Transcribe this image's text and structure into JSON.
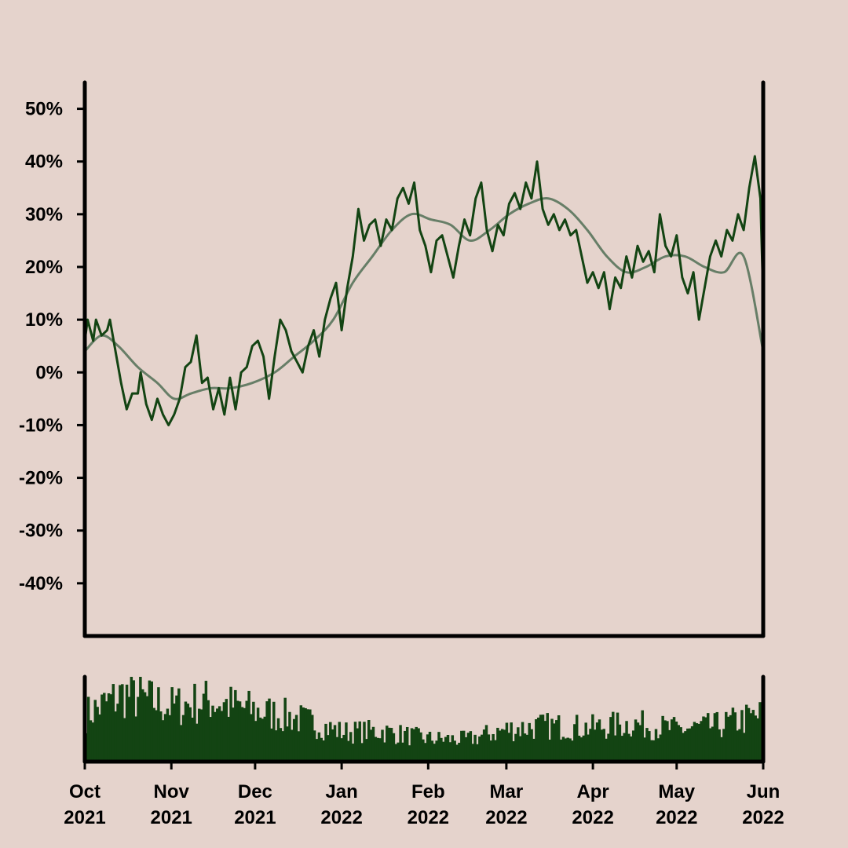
{
  "colors": {
    "background": "#e5d3cc",
    "price_line": "#134413",
    "ma_line": "#677e67",
    "volume_bars": "#134413",
    "axes": "#000000"
  },
  "chart_data": [
    {
      "type": "line",
      "x_range": [
        "2021-10-01",
        "2022-06-01"
      ],
      "ylim": [
        -50,
        55
      ],
      "y_ticks": [
        -40,
        -30,
        -20,
        -10,
        0,
        10,
        20,
        30,
        40,
        50
      ],
      "y_tick_labels": [
        "-40%",
        "-30%",
        "-20%",
        "-10%",
        "0%",
        "10%",
        "20%",
        "30%",
        "40%",
        "50%"
      ],
      "grid": false,
      "legend": "none",
      "series": [
        {
          "style": "jagged",
          "points": [
            [
              "2021-10-01",
              6
            ],
            [
              "2021-10-02",
              10
            ],
            [
              "2021-10-04",
              6
            ],
            [
              "2021-10-05",
              10
            ],
            [
              "2021-10-07",
              7
            ],
            [
              "2021-10-09",
              8
            ],
            [
              "2021-10-10",
              10
            ],
            [
              "2021-10-12",
              4
            ],
            [
              "2021-10-14",
              -2
            ],
            [
              "2021-10-16",
              -7
            ],
            [
              "2021-10-18",
              -4
            ],
            [
              "2021-10-20",
              -4
            ],
            [
              "2021-10-21",
              0
            ],
            [
              "2021-10-23",
              -6
            ],
            [
              "2021-10-25",
              -9
            ],
            [
              "2021-10-27",
              -5
            ],
            [
              "2021-10-29",
              -8
            ],
            [
              "2021-10-31",
              -10
            ],
            [
              "2021-11-02",
              -8
            ],
            [
              "2021-11-04",
              -5
            ],
            [
              "2021-11-06",
              1
            ],
            [
              "2021-11-08",
              2
            ],
            [
              "2021-11-10",
              7
            ],
            [
              "2021-11-12",
              -2
            ],
            [
              "2021-11-14",
              -1
            ],
            [
              "2021-11-16",
              -7
            ],
            [
              "2021-11-18",
              -3
            ],
            [
              "2021-11-20",
              -8
            ],
            [
              "2021-11-22",
              -1
            ],
            [
              "2021-11-24",
              -7
            ],
            [
              "2021-11-26",
              0
            ],
            [
              "2021-11-28",
              1
            ],
            [
              "2021-11-30",
              5
            ],
            [
              "2021-12-02",
              6
            ],
            [
              "2021-12-04",
              3
            ],
            [
              "2021-12-06",
              -5
            ],
            [
              "2021-12-08",
              3
            ],
            [
              "2021-12-10",
              10
            ],
            [
              "2021-12-12",
              8
            ],
            [
              "2021-12-14",
              4
            ],
            [
              "2021-12-16",
              2
            ],
            [
              "2021-12-18",
              0
            ],
            [
              "2021-12-20",
              5
            ],
            [
              "2021-12-22",
              8
            ],
            [
              "2021-12-24",
              3
            ],
            [
              "2021-12-26",
              10
            ],
            [
              "2021-12-28",
              14
            ],
            [
              "2021-12-30",
              17
            ],
            [
              "2022-01-01",
              8
            ],
            [
              "2022-01-03",
              16
            ],
            [
              "2022-01-05",
              22
            ],
            [
              "2022-01-07",
              31
            ],
            [
              "2022-01-09",
              25
            ],
            [
              "2022-01-11",
              28
            ],
            [
              "2022-01-13",
              29
            ],
            [
              "2022-01-15",
              24
            ],
            [
              "2022-01-17",
              29
            ],
            [
              "2022-01-19",
              27
            ],
            [
              "2022-01-21",
              33
            ],
            [
              "2022-01-23",
              35
            ],
            [
              "2022-01-25",
              32
            ],
            [
              "2022-01-27",
              36
            ],
            [
              "2022-01-29",
              27
            ],
            [
              "2022-01-31",
              24
            ],
            [
              "2022-02-02",
              19
            ],
            [
              "2022-02-04",
              25
            ],
            [
              "2022-02-06",
              26
            ],
            [
              "2022-02-08",
              22
            ],
            [
              "2022-02-10",
              18
            ],
            [
              "2022-02-12",
              24
            ],
            [
              "2022-02-14",
              29
            ],
            [
              "2022-02-16",
              26
            ],
            [
              "2022-02-18",
              33
            ],
            [
              "2022-02-20",
              36
            ],
            [
              "2022-02-22",
              27
            ],
            [
              "2022-02-24",
              23
            ],
            [
              "2022-02-26",
              28
            ],
            [
              "2022-02-28",
              26
            ],
            [
              "2022-03-02",
              32
            ],
            [
              "2022-03-04",
              34
            ],
            [
              "2022-03-06",
              31
            ],
            [
              "2022-03-08",
              36
            ],
            [
              "2022-03-10",
              33
            ],
            [
              "2022-03-12",
              40
            ],
            [
              "2022-03-14",
              31
            ],
            [
              "2022-03-16",
              28
            ],
            [
              "2022-03-18",
              30
            ],
            [
              "2022-03-20",
              27
            ],
            [
              "2022-03-22",
              29
            ],
            [
              "2022-03-24",
              26
            ],
            [
              "2022-03-26",
              27
            ],
            [
              "2022-03-28",
              22
            ],
            [
              "2022-03-30",
              17
            ],
            [
              "2022-04-01",
              19
            ],
            [
              "2022-04-03",
              16
            ],
            [
              "2022-04-05",
              19
            ],
            [
              "2022-04-07",
              12
            ],
            [
              "2022-04-09",
              18
            ],
            [
              "2022-04-11",
              16
            ],
            [
              "2022-04-13",
              22
            ],
            [
              "2022-04-15",
              18
            ],
            [
              "2022-04-17",
              24
            ],
            [
              "2022-04-19",
              21
            ],
            [
              "2022-04-21",
              23
            ],
            [
              "2022-04-23",
              19
            ],
            [
              "2022-04-25",
              30
            ],
            [
              "2022-04-27",
              24
            ],
            [
              "2022-04-29",
              22
            ],
            [
              "2022-05-01",
              26
            ],
            [
              "2022-05-03",
              18
            ],
            [
              "2022-05-05",
              15
            ],
            [
              "2022-05-07",
              19
            ],
            [
              "2022-05-09",
              10
            ],
            [
              "2022-05-11",
              16
            ],
            [
              "2022-05-13",
              22
            ],
            [
              "2022-05-15",
              25
            ],
            [
              "2022-05-17",
              22
            ],
            [
              "2022-05-19",
              27
            ],
            [
              "2022-05-21",
              25
            ],
            [
              "2022-05-23",
              30
            ],
            [
              "2022-05-25",
              27
            ],
            [
              "2022-05-27",
              35
            ],
            [
              "2022-05-29",
              41
            ],
            [
              "2022-05-31",
              33
            ],
            [
              "2022-06-01",
              14
            ]
          ]
        },
        {
          "style": "smooth",
          "points": [
            [
              "2021-10-01",
              4
            ],
            [
              "2021-10-07",
              7
            ],
            [
              "2021-10-13",
              5
            ],
            [
              "2021-10-20",
              1
            ],
            [
              "2021-10-27",
              -2
            ],
            [
              "2021-11-02",
              -5
            ],
            [
              "2021-11-08",
              -4
            ],
            [
              "2021-11-15",
              -3
            ],
            [
              "2021-11-22",
              -3
            ],
            [
              "2021-11-30",
              -2
            ],
            [
              "2021-12-08",
              0
            ],
            [
              "2021-12-15",
              3
            ],
            [
              "2021-12-22",
              6
            ],
            [
              "2021-12-29",
              10
            ],
            [
              "2022-01-05",
              17
            ],
            [
              "2022-01-12",
              22
            ],
            [
              "2022-01-19",
              27
            ],
            [
              "2022-01-26",
              30
            ],
            [
              "2022-02-02",
              29
            ],
            [
              "2022-02-09",
              28
            ],
            [
              "2022-02-16",
              25
            ],
            [
              "2022-02-23",
              27
            ],
            [
              "2022-03-02",
              30
            ],
            [
              "2022-03-09",
              32
            ],
            [
              "2022-03-16",
              33
            ],
            [
              "2022-03-23",
              31
            ],
            [
              "2022-03-30",
              27
            ],
            [
              "2022-04-06",
              22
            ],
            [
              "2022-04-13",
              19
            ],
            [
              "2022-04-20",
              20
            ],
            [
              "2022-04-27",
              22
            ],
            [
              "2022-05-04",
              22
            ],
            [
              "2022-05-11",
              20
            ],
            [
              "2022-05-18",
              19
            ],
            [
              "2022-05-25",
              22
            ],
            [
              "2022-06-01",
              4
            ]
          ]
        }
      ]
    },
    {
      "type": "bar",
      "x_range": [
        "2021-10-01",
        "2022-06-01"
      ],
      "grid": false,
      "legend": "none",
      "volume_profile": [
        [
          "2021-10-01",
          0.55
        ],
        [
          "2021-10-15",
          0.8
        ],
        [
          "2021-11-01",
          0.65
        ],
        [
          "2021-11-15",
          0.72
        ],
        [
          "2021-12-01",
          0.6
        ],
        [
          "2021-12-15",
          0.52
        ],
        [
          "2022-01-01",
          0.35
        ],
        [
          "2022-01-15",
          0.36
        ],
        [
          "2022-02-01",
          0.27
        ],
        [
          "2022-02-15",
          0.26
        ],
        [
          "2022-03-01",
          0.38
        ],
        [
          "2022-03-15",
          0.42
        ],
        [
          "2022-04-01",
          0.4
        ],
        [
          "2022-04-15",
          0.45
        ],
        [
          "2022-05-01",
          0.38
        ],
        [
          "2022-05-15",
          0.42
        ],
        [
          "2022-06-01",
          0.55
        ]
      ],
      "x_ticks": [
        "2021-10-01",
        "2021-11-01",
        "2021-12-01",
        "2022-01-01",
        "2022-02-01",
        "2022-03-01",
        "2022-04-01",
        "2022-05-01",
        "2022-06-01"
      ],
      "x_tick_labels": [
        [
          "Oct",
          "2021"
        ],
        [
          "Nov",
          "2021"
        ],
        [
          "Dec",
          "2021"
        ],
        [
          "Jan",
          "2022"
        ],
        [
          "Feb",
          "2022"
        ],
        [
          "Mar",
          "2022"
        ],
        [
          "Apr",
          "2022"
        ],
        [
          "May",
          "2022"
        ],
        [
          "Jun",
          "2022"
        ]
      ]
    }
  ]
}
